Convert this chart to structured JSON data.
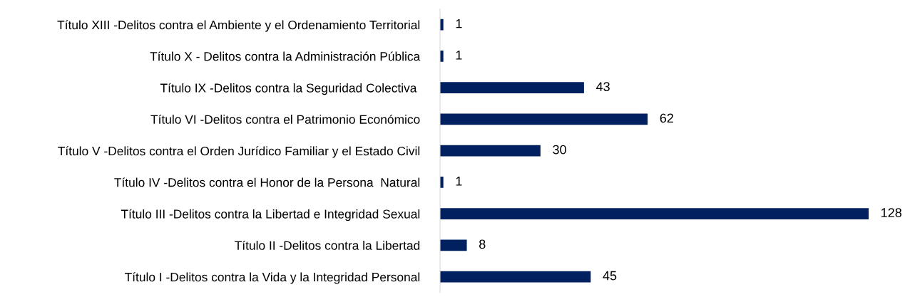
{
  "chart_data": {
    "type": "bar",
    "orientation": "horizontal",
    "data_labels": true,
    "grid": false,
    "legend": false,
    "tick_labels": "y",
    "color": "#002060",
    "categories": [
      "Título XIII -Delitos contra el Ambiente y el Ordenamiento Territorial",
      "Título X - Delitos contra la Administración Pública",
      "Título IX -Delitos contra la Seguridad Colectiva ",
      "Título VI -Delitos contra el Patrimonio Económico",
      "Título V -Delitos contra el Orden Jurídico Familiar y el Estado Civil",
      "Título IV -Delitos contra el Honor de la Persona  Natural",
      "Título III -Delitos contra la Libertad e Integridad Sexual",
      "Título II -Delitos contra la Libertad",
      "Título I -Delitos contra la Vida y la Integridad Personal"
    ],
    "values": [
      1,
      1,
      43,
      62,
      30,
      1,
      128,
      8,
      45
    ]
  }
}
